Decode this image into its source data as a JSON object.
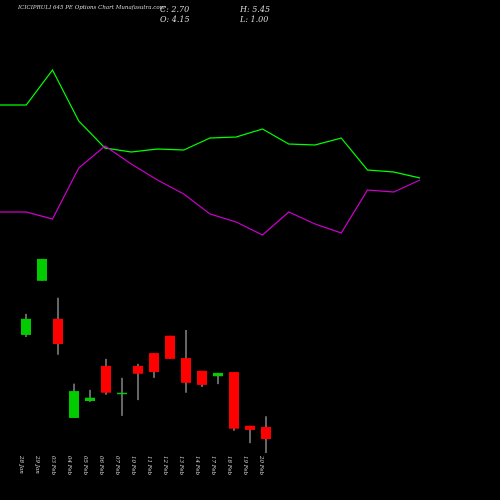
{
  "chart_data": [
    {
      "type": "candlestick",
      "title": "ICICIPRULI 645 PE Options Chart Munafasutra.com",
      "annotations": [
        "C: 2.70",
        "H: 5.45",
        "O: 4.15",
        "L: 1.00"
      ],
      "categories": [
        "28 Jan",
        "29 Jan",
        "03 Feb",
        "04 Feb",
        "05 Feb",
        "06 Feb",
        "07 Feb",
        "10 Feb",
        "11 Feb",
        "12 Feb",
        "13 Feb",
        "14 Feb",
        "17 Feb",
        "18 Feb",
        "19 Feb",
        "20 Feb"
      ],
      "open": [
        15.3,
        21.85,
        17.25,
        5.25,
        7.3,
        11.55,
        8.15,
        11.55,
        13.1,
        15.2,
        12.5,
        10.95,
        10.3,
        10.8,
        4.3,
        4.15
      ],
      "close": [
        17.25,
        24.5,
        14.2,
        8.5,
        7.7,
        8.3,
        8.3,
        10.6,
        10.8,
        12.4,
        9.5,
        9.25,
        10.7,
        3.95,
        3.8,
        2.7
      ],
      "high": [
        17.85,
        24.5,
        19.8,
        9.4,
        8.65,
        12.4,
        10.1,
        11.8,
        13.1,
        15.2,
        15.9,
        10.95,
        10.7,
        10.8,
        4.3,
        5.45
      ],
      "low": [
        15.05,
        21.85,
        12.9,
        5.25,
        7.2,
        8.05,
        5.5,
        7.4,
        10.1,
        12.4,
        8.3,
        9.0,
        9.35,
        3.7,
        2.2,
        1.0
      ],
      "up_color": "#00cc00",
      "down_color": "#ff0000",
      "wick_color": "#cccccc",
      "ylim": [
        0,
        30
      ]
    },
    {
      "type": "line",
      "series": [
        {
          "color": "#00ff00",
          "values": [
            135,
            135,
            170,
            119,
            92,
            88,
            91,
            90,
            102,
            103,
            111,
            96,
            95,
            102,
            70,
            68,
            62
          ]
        },
        {
          "color": "#cc00cc",
          "values": [
            28,
            28,
            21,
            72,
            94,
            76,
            60,
            46,
            26,
            18,
            5,
            28,
            16,
            7,
            50,
            48,
            60
          ]
        }
      ],
      "ylim": [
        0,
        200
      ]
    }
  ]
}
